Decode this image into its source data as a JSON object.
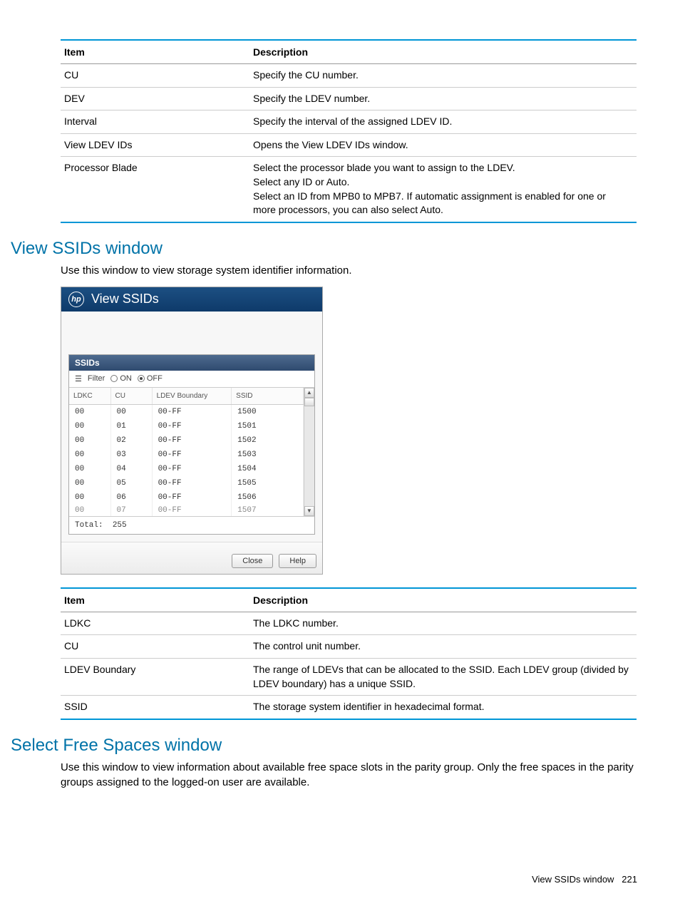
{
  "table1": {
    "headers": {
      "item": "Item",
      "desc": "Description"
    },
    "rows": [
      {
        "item": "CU",
        "desc": "Specify the CU number."
      },
      {
        "item": "DEV",
        "desc": "Specify the LDEV number."
      },
      {
        "item": "Interval",
        "desc": "Specify the interval of the assigned LDEV ID."
      },
      {
        "item": "View LDEV IDs",
        "desc": "Opens the View LDEV IDs window."
      },
      {
        "item": "Processor Blade",
        "desc": "Select the processor blade you want to assign to the LDEV.\nSelect any ID or Auto.\nSelect an ID from MPB0 to MPB7. If automatic assignment is enabled for one or more processors, you can also select Auto."
      }
    ]
  },
  "section1": {
    "heading": "View SSIDs window",
    "intro": "Use this window to view storage system identifier information."
  },
  "ssid_window": {
    "title": "View SSIDs",
    "panel_title": "SSIDs",
    "filter_label": "Filter",
    "radio_on": "ON",
    "radio_off": "OFF",
    "columns": {
      "ldkc": "LDKC",
      "cu": "CU",
      "boundary": "LDEV Boundary",
      "ssid": "SSID"
    },
    "rows": [
      {
        "ldkc": "00",
        "cu": "00",
        "boundary": "00-FF",
        "ssid": "1500"
      },
      {
        "ldkc": "00",
        "cu": "01",
        "boundary": "00-FF",
        "ssid": "1501"
      },
      {
        "ldkc": "00",
        "cu": "02",
        "boundary": "00-FF",
        "ssid": "1502"
      },
      {
        "ldkc": "00",
        "cu": "03",
        "boundary": "00-FF",
        "ssid": "1503"
      },
      {
        "ldkc": "00",
        "cu": "04",
        "boundary": "00-FF",
        "ssid": "1504"
      },
      {
        "ldkc": "00",
        "cu": "05",
        "boundary": "00-FF",
        "ssid": "1505"
      },
      {
        "ldkc": "00",
        "cu": "06",
        "boundary": "00-FF",
        "ssid": "1506"
      },
      {
        "ldkc": "00",
        "cu": "07",
        "boundary": "00-FF",
        "ssid": "1507"
      }
    ],
    "total_label": "Total:",
    "total_value": "255",
    "close_label": "Close",
    "help_label": "Help"
  },
  "table2": {
    "headers": {
      "item": "Item",
      "desc": "Description"
    },
    "rows": [
      {
        "item": "LDKC",
        "desc": "The LDKC number."
      },
      {
        "item": "CU",
        "desc": "The control unit number."
      },
      {
        "item": "LDEV Boundary",
        "desc": "The range of LDEVs that can be allocated to the SSID. Each LDEV group (divided by LDEV boundary) has a unique SSID."
      },
      {
        "item": "SSID",
        "desc": "The storage system identifier in hexadecimal format."
      }
    ]
  },
  "section2": {
    "heading": "Select Free Spaces window",
    "intro": "Use this window to view information about available free space slots in the parity group. Only the free spaces in the parity groups assigned to the logged-on user are available."
  },
  "footer": {
    "text": "View SSIDs window",
    "page": "221"
  }
}
